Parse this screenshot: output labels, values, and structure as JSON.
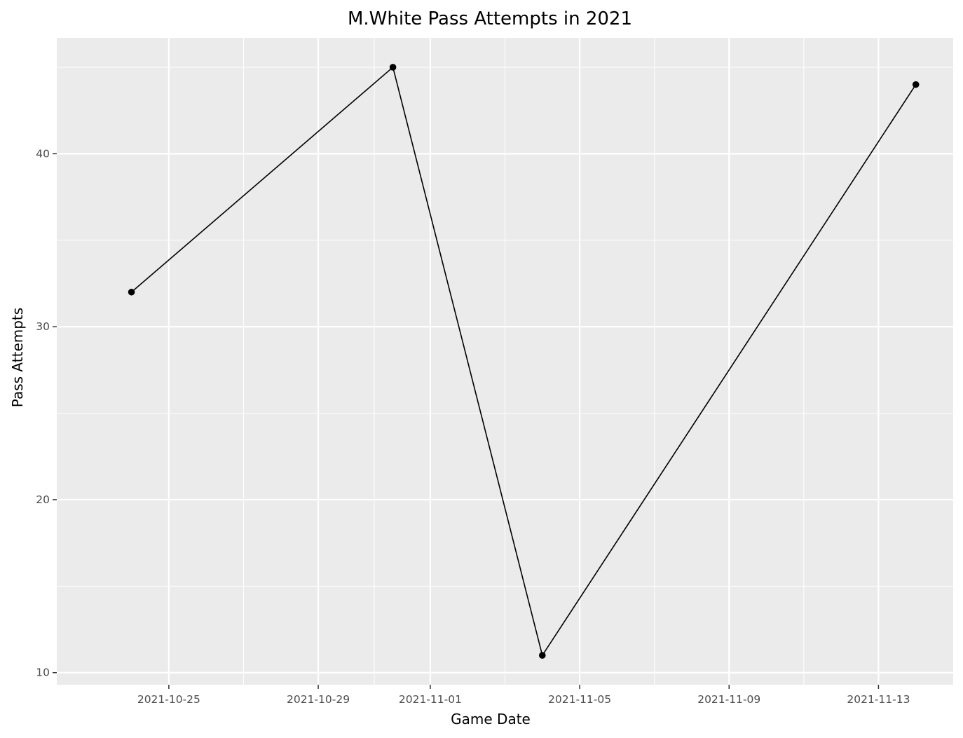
{
  "chart_data": {
    "type": "line",
    "title": "M.White Pass Attempts in 2021",
    "xlabel": "Game Date",
    "ylabel": "Pass Attempts",
    "x_tick_labels": [
      "2021-10-25",
      "2021-10-29",
      "2021-11-01",
      "2021-11-05",
      "2021-11-09",
      "2021-11-13"
    ],
    "y_tick_labels": [
      "10",
      "20",
      "30",
      "40"
    ],
    "y_ticks": [
      10,
      20,
      30,
      40
    ],
    "xlim": [
      "2021-10-22",
      "2021-11-15"
    ],
    "ylim": [
      9.3,
      46.7
    ],
    "grid": true,
    "series": [
      {
        "x": [
          "2021-10-24",
          "2021-10-31",
          "2021-11-04",
          "2021-11-14"
        ],
        "values": [
          32,
          45,
          11,
          44
        ]
      }
    ],
    "colors": {
      "panel": "#ebebeb",
      "grid": "#ffffff",
      "line": "#000000",
      "tick_text": "#4d4d4d"
    }
  }
}
